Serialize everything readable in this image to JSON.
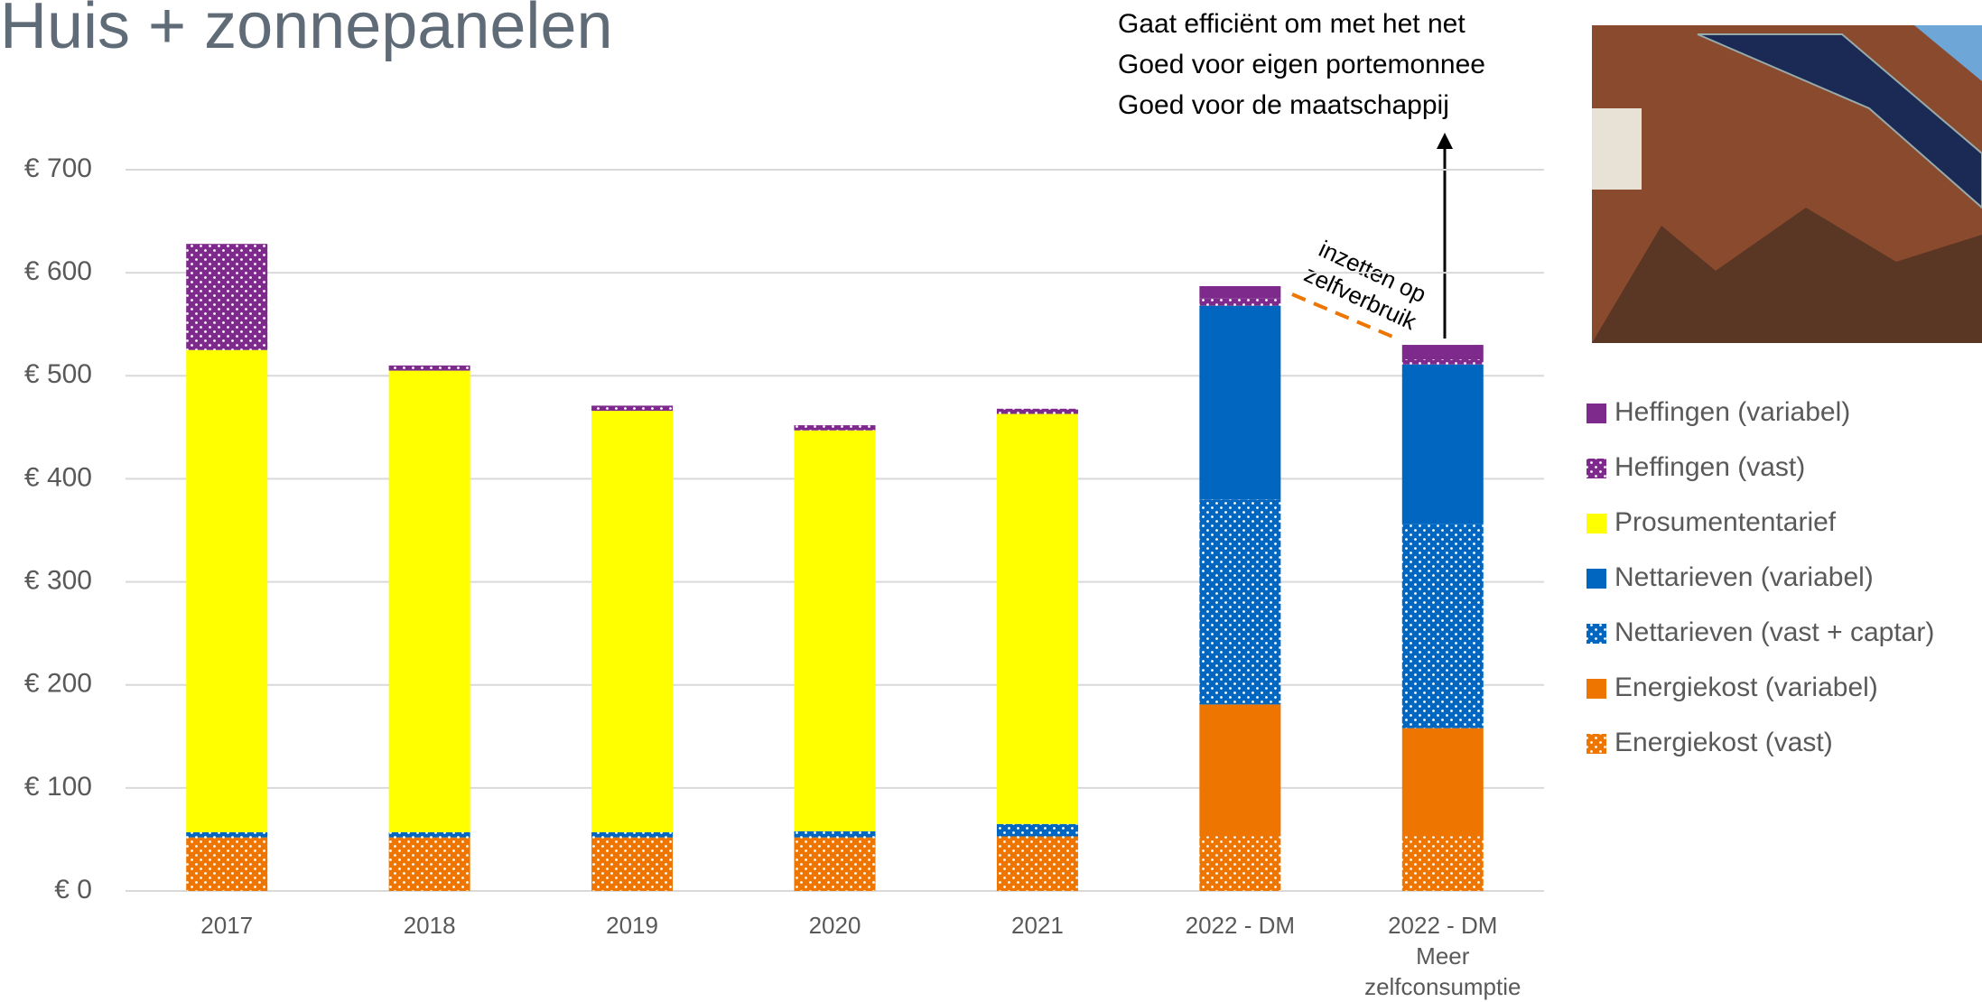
{
  "chart_data": {
    "type": "stacked_bar",
    "title": "Huis + zonnepanelen",
    "annotation": [
      "Gaat efficiënt om met het net",
      "Goed voor eigen portemonnee",
      "Goed voor de maatschappij"
    ],
    "callout": [
      "inzetten op",
      "zelfverbruik"
    ],
    "categories": [
      "2017",
      "2018",
      "2019",
      "2020",
      "2021",
      "2022 - DM",
      "2022 - DM\nMeer\nzelfconsumptie"
    ],
    "series": [
      {
        "name": "Energiekost (vast)",
        "color": "#ee7600",
        "pattern": "dots",
        "values": [
          52,
          52,
          52,
          52,
          53,
          53,
          53
        ]
      },
      {
        "name": "Energiekost (variabel)",
        "color": "#ee7600",
        "pattern": "solid",
        "values": [
          0,
          0,
          0,
          0,
          0,
          128,
          105
        ]
      },
      {
        "name": "Nettarieven (vast + captar)",
        "color": "#0066c0",
        "pattern": "dots",
        "values": [
          5,
          5,
          5,
          6,
          12,
          199,
          198
        ]
      },
      {
        "name": "Nettarieven (variabel)",
        "color": "#0066c0",
        "pattern": "solid",
        "values": [
          0,
          0,
          0,
          0,
          0,
          188,
          155
        ]
      },
      {
        "name": "Prosumententarief",
        "color": "#ffff00",
        "pattern": "solid",
        "values": [
          468,
          448,
          409,
          389,
          398,
          0,
          0
        ]
      },
      {
        "name": "Heffingen (vast)",
        "color": "#7e2a8c",
        "pattern": "dots",
        "values": [
          103,
          5,
          5,
          5,
          5,
          7,
          5
        ]
      },
      {
        "name": "Heffingen (variabel)",
        "color": "#7e2a8c",
        "pattern": "solid",
        "values": [
          0,
          0,
          0,
          0,
          0,
          12,
          14
        ]
      }
    ],
    "ylim": [
      0,
      700
    ],
    "yticks": [
      {
        "value": 0,
        "label": "€ 0"
      },
      {
        "value": 100,
        "label": "€ 100"
      },
      {
        "value": 200,
        "label": "€ 200"
      },
      {
        "value": 300,
        "label": "€ 300"
      },
      {
        "value": 400,
        "label": "€ 400"
      },
      {
        "value": 500,
        "label": "€ 500"
      },
      {
        "value": 600,
        "label": "€ 600"
      },
      {
        "value": 700,
        "label": "€ 700"
      }
    ],
    "grid": true,
    "legend": "right"
  }
}
